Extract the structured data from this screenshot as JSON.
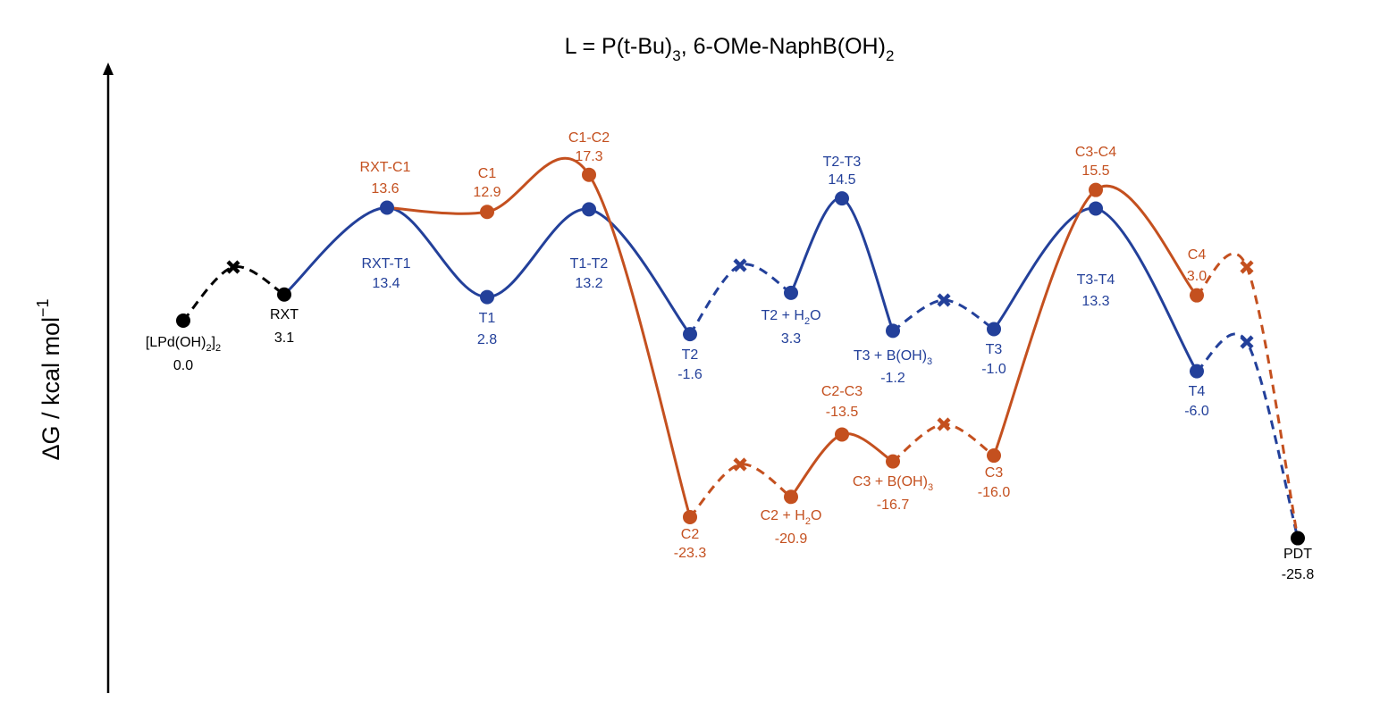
{
  "chart_data": {
    "type": "line",
    "title_main": "L = P(t-Bu)",
    "title_sub1": "3",
    "title_mid": ", 6-OMe-NaphB(OH)",
    "title_sub2": "2",
    "ylabel_main": "ΔG / kcal mol",
    "ylabel_sup": "−1",
    "ylim": [
      -42,
      30
    ],
    "colors": {
      "common": "#000000",
      "blue": "#23409a",
      "orange": "#c4501f"
    },
    "points": [
      {
        "id": "s0",
        "color": "common",
        "name": "[LPd(OH)",
        "sub": "2",
        "suffix": "]",
        "sub2": "2",
        "value": "0.0",
        "y": 0.0
      },
      {
        "id": "rxt",
        "color": "common",
        "name": "RXT",
        "value": "3.1",
        "y": 3.1
      },
      {
        "id": "rt1",
        "color": "blue",
        "name": "RXT-T1",
        "value": "13.4",
        "y": 13.4
      },
      {
        "id": "t1",
        "color": "blue",
        "name": "T1",
        "value": "2.8",
        "y": 2.8
      },
      {
        "id": "t12",
        "color": "blue",
        "name": "T1-T2",
        "value": "13.2",
        "y": 13.2
      },
      {
        "id": "t2",
        "color": "blue",
        "name": "T2",
        "value": "-1.6",
        "y": -1.6
      },
      {
        "id": "t2w",
        "color": "blue",
        "name": "T2 + H",
        "sub": "2",
        "suffix": "O",
        "value": "3.3",
        "y": 3.3
      },
      {
        "id": "t23",
        "color": "blue",
        "name": "T2-T3",
        "value": "14.5",
        "y": 14.5
      },
      {
        "id": "t3b",
        "color": "blue",
        "name": "T3 + B(OH)",
        "sub": "3",
        "value": "-1.2",
        "y": -1.2
      },
      {
        "id": "t3",
        "color": "blue",
        "name": "T3",
        "value": "-1.0",
        "y": -1.0
      },
      {
        "id": "t34",
        "color": "blue",
        "name": "T3-T4",
        "value": "13.3",
        "y": 13.3
      },
      {
        "id": "t4",
        "color": "blue",
        "name": "T4",
        "value": "-6.0",
        "y": -6.0
      },
      {
        "id": "rc1",
        "color": "orange",
        "name": "RXT-C1",
        "value": "13.6",
        "y": 13.6
      },
      {
        "id": "c1",
        "color": "orange",
        "name": "C1",
        "value": "12.9",
        "y": 12.9
      },
      {
        "id": "c12",
        "color": "orange",
        "name": "C1-C2",
        "value": "17.3",
        "y": 17.3
      },
      {
        "id": "c2",
        "color": "orange",
        "name": "C2",
        "value": "-23.3",
        "y": -23.3
      },
      {
        "id": "c2w",
        "color": "orange",
        "name": "C2 + H",
        "sub": "2",
        "suffix": "O",
        "value": "-20.9",
        "y": -20.9
      },
      {
        "id": "c23",
        "color": "orange",
        "name": "C2-C3",
        "value": "-13.5",
        "y": -13.5
      },
      {
        "id": "c3b",
        "color": "orange",
        "name": "C3 + B(OH)",
        "sub": "3",
        "value": "-16.7",
        "y": -16.7
      },
      {
        "id": "c3",
        "color": "orange",
        "name": "C3",
        "value": "-16.0",
        "y": -16.0
      },
      {
        "id": "c34",
        "color": "orange",
        "name": "C3-C4",
        "value": "15.5",
        "y": 15.5
      },
      {
        "id": "c4",
        "color": "orange",
        "name": "C4",
        "value": "3.0",
        "y": 3.0
      },
      {
        "id": "pdt",
        "color": "common",
        "name": "PDT",
        "value": "-25.8",
        "y": -25.8
      }
    ]
  }
}
